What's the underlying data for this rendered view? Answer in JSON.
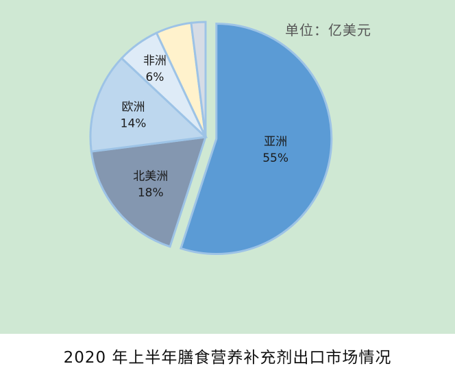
{
  "unit_label": "单位：亿美元",
  "caption": "2020 年上半年膳食营养补充剂出口市场情况",
  "chart_data": {
    "type": "pie",
    "title": "2020 年上半年膳食营养补充剂出口市场情况",
    "unit": "单位：亿美元",
    "slices": [
      {
        "name": "亚洲",
        "percent_label": "55%",
        "value": 55,
        "color": "#5b9bd5",
        "exploded": true
      },
      {
        "name": "北美洲",
        "percent_label": "18%",
        "value": 18,
        "color": "#8497b0",
        "exploded": false
      },
      {
        "name": "欧洲",
        "percent_label": "14%",
        "value": 14,
        "color": "#bdd7ee",
        "exploded": false
      },
      {
        "name": "非洲",
        "percent_label": "6%",
        "value": 6,
        "color": "#deebf7",
        "exploded": false
      },
      {
        "name": "",
        "percent_label": "",
        "value": 5,
        "color": "#fff2cc",
        "exploded": false
      },
      {
        "name": "",
        "percent_label": "",
        "value": 2,
        "color": "#d6dce5",
        "exploded": false
      }
    ],
    "border_color": "#9dc3e6"
  }
}
